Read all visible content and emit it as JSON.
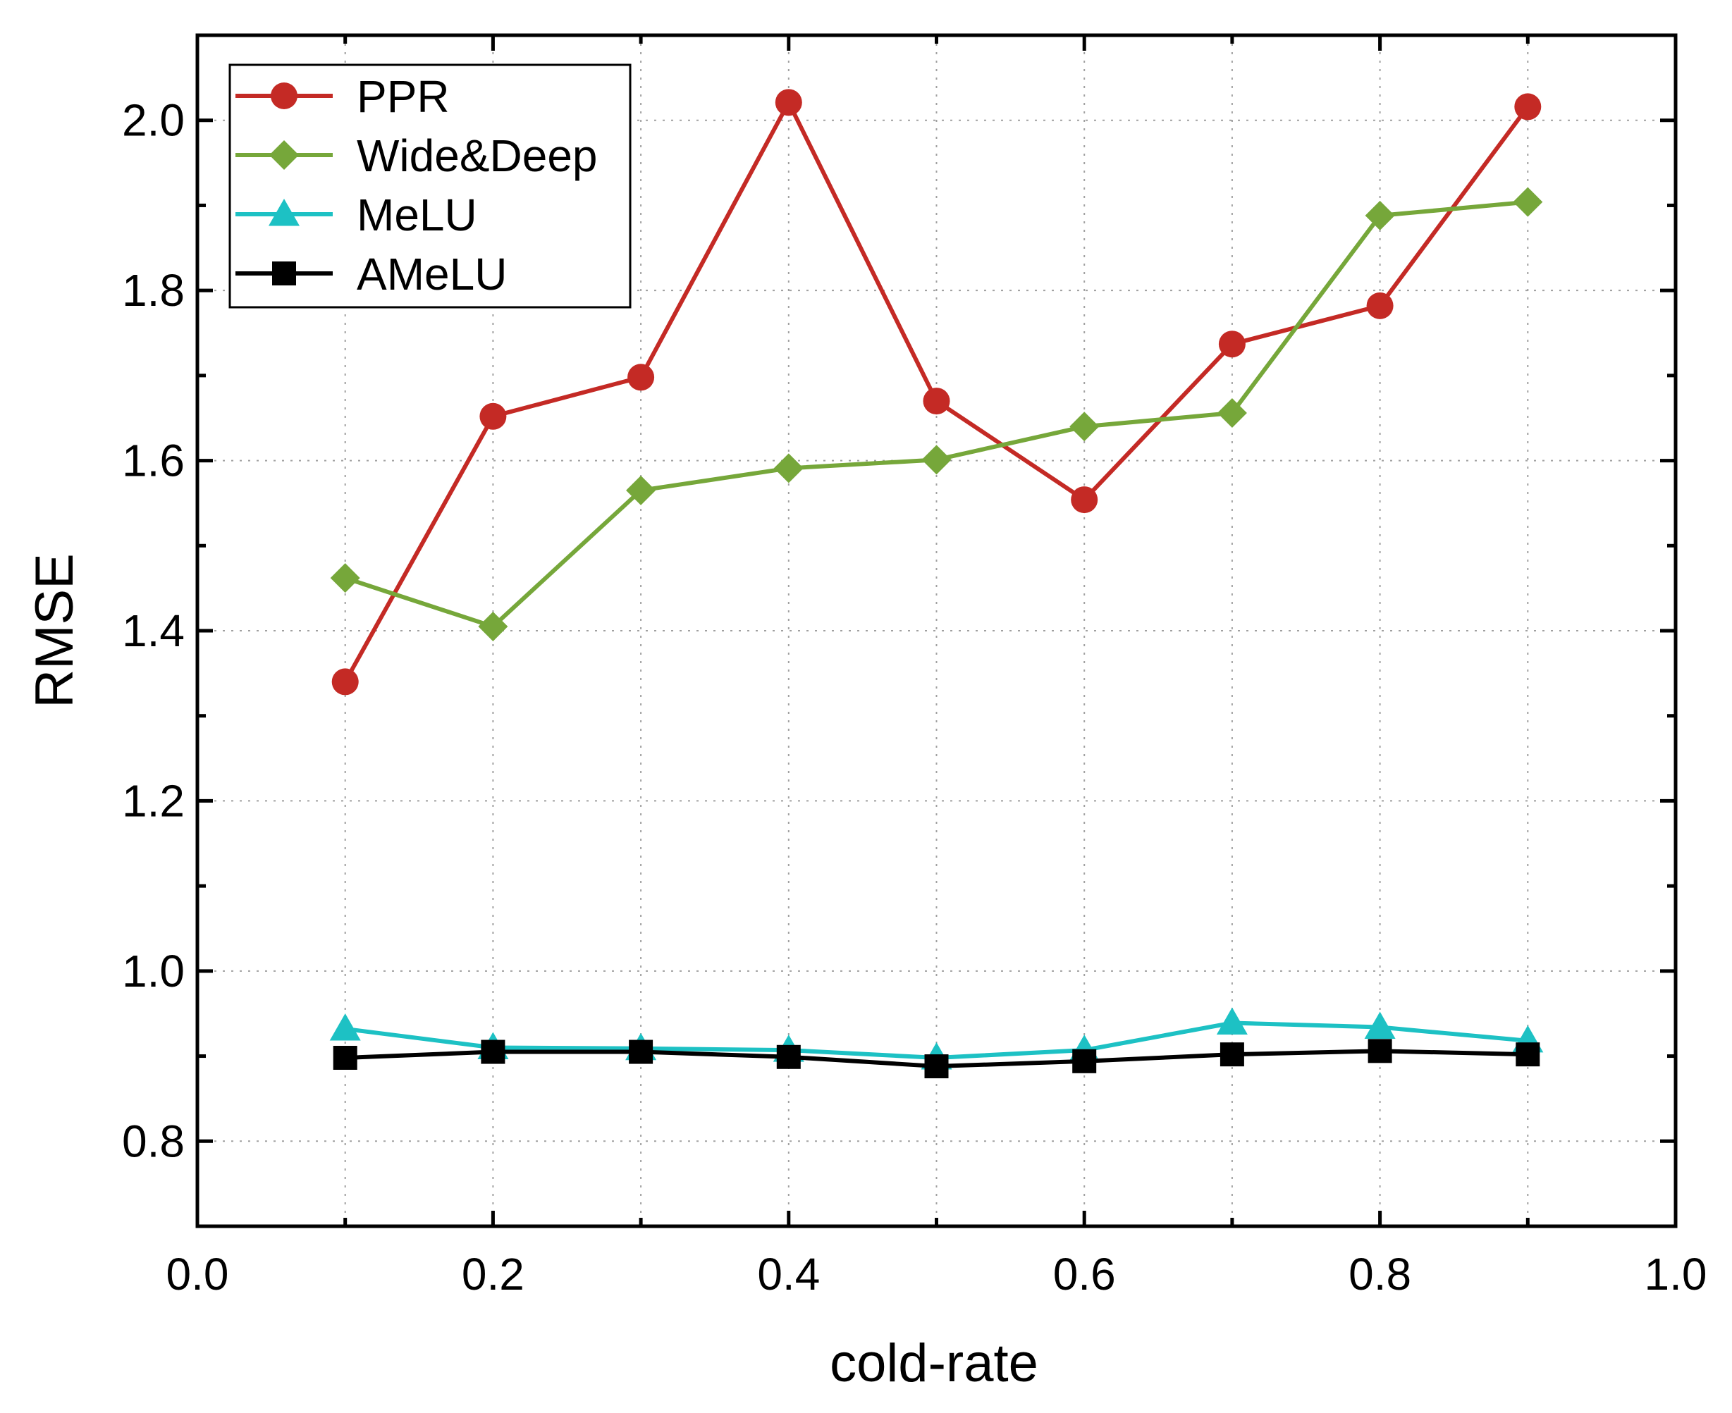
{
  "chart_data": {
    "type": "line",
    "title": "",
    "xlabel": "cold-rate",
    "ylabel": "RMSE",
    "xlim": [
      0.0,
      1.0
    ],
    "ylim": [
      0.7,
      2.1
    ],
    "xticks": [
      0.0,
      0.2,
      0.4,
      0.6,
      0.8,
      1.0
    ],
    "xtick_labels": [
      "0.0",
      "0.2",
      "0.4",
      "0.6",
      "0.8",
      "1.0"
    ],
    "yticks": [
      0.8,
      1.0,
      1.2,
      1.4,
      1.6,
      1.8,
      2.0
    ],
    "ytick_labels": [
      "0.8",
      "1.0",
      "1.2",
      "1.4",
      "1.6",
      "1.8",
      "2.0"
    ],
    "grid": true,
    "legend_position": "top-left",
    "x": [
      0.1,
      0.2,
      0.3,
      0.4,
      0.5,
      0.6,
      0.7,
      0.8,
      0.9
    ],
    "series": [
      {
        "name": "PPR",
        "color": "#c42a25",
        "marker": "circle",
        "values": [
          1.34,
          1.652,
          1.698,
          2.021,
          1.67,
          1.554,
          1.737,
          1.782,
          2.016
        ]
      },
      {
        "name": "Wide&Deep",
        "color": "#76a73a",
        "marker": "diamond",
        "values": [
          1.462,
          1.405,
          1.565,
          1.591,
          1.601,
          1.64,
          1.656,
          1.888,
          1.904
        ]
      },
      {
        "name": "MeLU",
        "color": "#1dc1c4",
        "marker": "triangle",
        "values": [
          0.932,
          0.91,
          0.909,
          0.907,
          0.898,
          0.907,
          0.939,
          0.934,
          0.918
        ]
      },
      {
        "name": "AMeLU",
        "color": "#000000",
        "marker": "square",
        "values": [
          0.898,
          0.905,
          0.905,
          0.899,
          0.888,
          0.894,
          0.902,
          0.906,
          0.902
        ]
      }
    ]
  }
}
